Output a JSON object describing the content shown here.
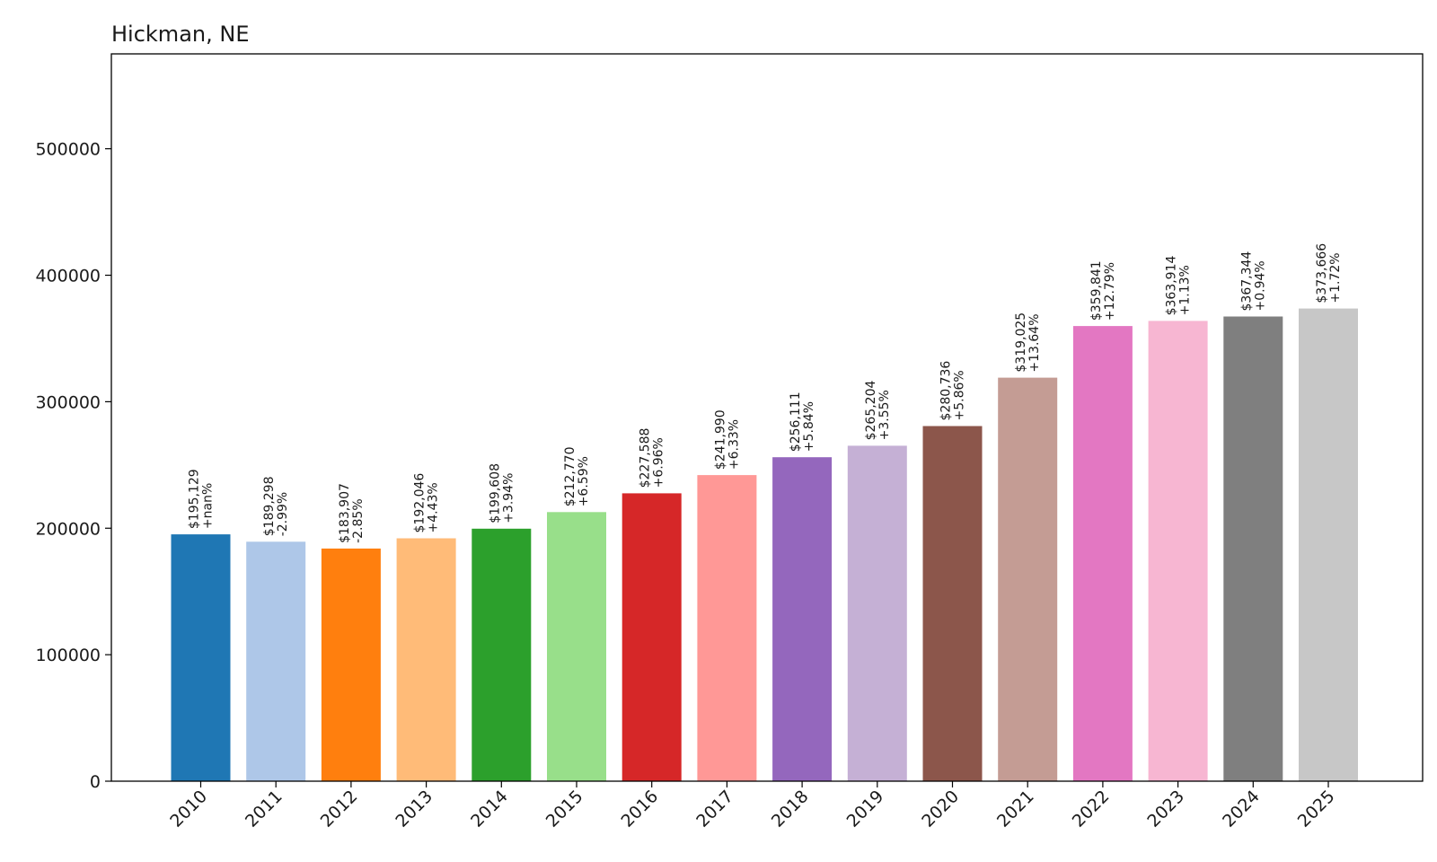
{
  "chart_data": {
    "type": "bar",
    "title": "Hickman, NE",
    "xlabel": "",
    "ylabel": "",
    "ylim": [
      0,
      575000
    ],
    "yticks": [
      0,
      100000,
      200000,
      300000,
      400000,
      500000
    ],
    "ytick_labels": [
      "0",
      "100000",
      "200000",
      "300000",
      "400000",
      "500000"
    ],
    "grid": false,
    "legend": "none",
    "categories": [
      "2010",
      "2011",
      "2012",
      "2013",
      "2014",
      "2015",
      "2016",
      "2017",
      "2018",
      "2019",
      "2020",
      "2021",
      "2022",
      "2023",
      "2024",
      "2025"
    ],
    "values": [
      195129,
      189298,
      183907,
      192046,
      199608,
      212770,
      227588,
      241990,
      256111,
      265204,
      280736,
      319025,
      359841,
      363914,
      367344,
      373666
    ],
    "value_labels": [
      "$195,129",
      "$189,298",
      "$183,907",
      "$192,046",
      "$199,608",
      "$212,770",
      "$227,588",
      "$241,990",
      "$256,111",
      "$265,204",
      "$280,736",
      "$319,025",
      "$359,841",
      "$363,914",
      "$367,344",
      "$373,666"
    ],
    "change_labels": [
      "+nan%",
      "-2.99%",
      "-2.85%",
      "+4.43%",
      "+3.94%",
      "+6.59%",
      "+6.96%",
      "+6.33%",
      "+5.84%",
      "+3.55%",
      "+5.86%",
      "+13.64%",
      "+12.79%",
      "+1.13%",
      "+0.94%",
      "+1.72%"
    ],
    "colors": [
      "#1f77b4",
      "#aec7e8",
      "#ff7f0e",
      "#ffbb78",
      "#2ca02c",
      "#98df8a",
      "#d62728",
      "#ff9896",
      "#9467bd",
      "#c5b0d5",
      "#8c564b",
      "#c49c94",
      "#e377c2",
      "#f7b6d2",
      "#7f7f7f",
      "#c7c7c7"
    ]
  }
}
